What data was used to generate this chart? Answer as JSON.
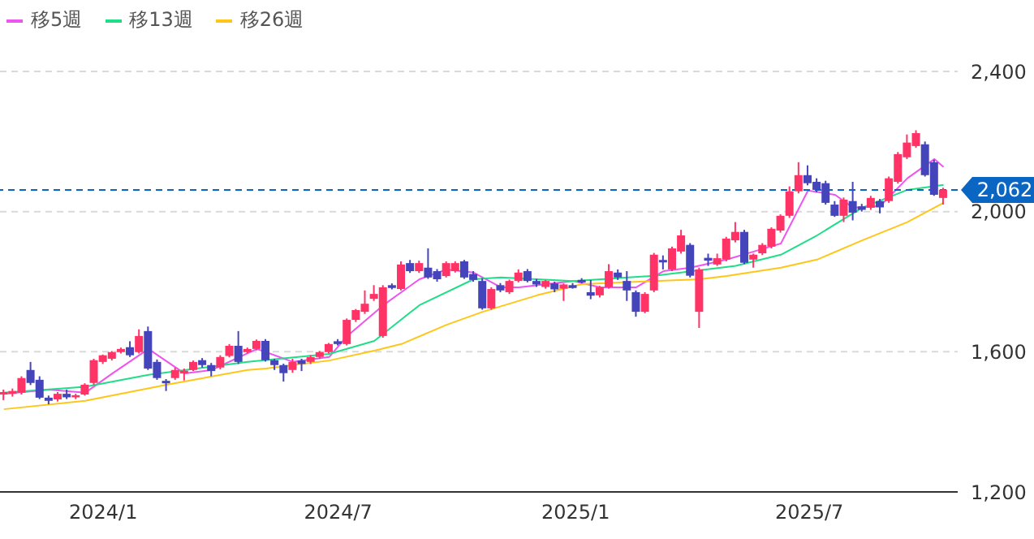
{
  "chart_data": {
    "type": "candlestick",
    "x": [
      "2023-10-16",
      "2023-10-23",
      "2023-10-30",
      "2023-11-06",
      "2023-11-13",
      "2023-11-20",
      "2023-11-27",
      "2023-12-04",
      "2023-12-11",
      "2023-12-18",
      "2023-12-25",
      "2024-01-01",
      "2024-01-08",
      "2024-01-15",
      "2024-01-22",
      "2024-01-29",
      "2024-02-05",
      "2024-02-12",
      "2024-02-19",
      "2024-02-26",
      "2024-03-04",
      "2024-03-11",
      "2024-03-18",
      "2024-03-25",
      "2024-04-01",
      "2024-04-08",
      "2024-04-15",
      "2024-04-22",
      "2024-04-29",
      "2024-05-06",
      "2024-05-13",
      "2024-05-20",
      "2024-05-27",
      "2024-06-03",
      "2024-06-10",
      "2024-06-17",
      "2024-06-24",
      "2024-07-01",
      "2024-07-08",
      "2024-07-15",
      "2024-07-22",
      "2024-07-29",
      "2024-08-05",
      "2024-08-12",
      "2024-08-19",
      "2024-08-26",
      "2024-09-02",
      "2024-09-09",
      "2024-09-16",
      "2024-09-23",
      "2024-09-30",
      "2024-10-07",
      "2024-10-14",
      "2024-10-21",
      "2024-10-28",
      "2024-11-04",
      "2024-11-11",
      "2024-11-18",
      "2024-11-25",
      "2024-12-02",
      "2024-12-09",
      "2024-12-16",
      "2024-12-23",
      "2024-12-30",
      "2025-01-06",
      "2025-01-13",
      "2025-01-20",
      "2025-01-27",
      "2025-02-03",
      "2025-02-10",
      "2025-02-17",
      "2025-02-24",
      "2025-03-03",
      "2025-03-10",
      "2025-03-17",
      "2025-03-24",
      "2025-03-31",
      "2025-04-07",
      "2025-04-14",
      "2025-04-21",
      "2025-04-28",
      "2025-05-05",
      "2025-05-12",
      "2025-05-19",
      "2025-05-26",
      "2025-06-02",
      "2025-06-09",
      "2025-06-16",
      "2025-06-23",
      "2025-06-30",
      "2025-07-07",
      "2025-07-14",
      "2025-07-21",
      "2025-07-28",
      "2025-08-04",
      "2025-08-11",
      "2025-08-18",
      "2025-08-25",
      "2025-09-01",
      "2025-09-08",
      "2025-09-15",
      "2025-09-22",
      "2025-09-29",
      "2025-10-06",
      "2025-10-13"
    ],
    "ohlc": [
      [
        1478,
        1492,
        1462,
        1485
      ],
      [
        1480,
        1495,
        1472,
        1488
      ],
      [
        1483,
        1530,
        1478,
        1525
      ],
      [
        1548,
        1571,
        1505,
        1511
      ],
      [
        1520,
        1530,
        1465,
        1469
      ],
      [
        1469,
        1475,
        1450,
        1460
      ],
      [
        1464,
        1485,
        1458,
        1480
      ],
      [
        1480,
        1492,
        1465,
        1470
      ],
      [
        1470,
        1480,
        1465,
        1476
      ],
      [
        1478,
        1510,
        1475,
        1506
      ],
      [
        1511,
        1580,
        1505,
        1576
      ],
      [
        1571,
        1592,
        1565,
        1590
      ],
      [
        1580,
        1602,
        1575,
        1599
      ],
      [
        1599,
        1612,
        1595,
        1608
      ],
      [
        1613,
        1630,
        1585,
        1590
      ],
      [
        1599,
        1664,
        1595,
        1645
      ],
      [
        1659,
        1672,
        1548,
        1552
      ],
      [
        1571,
        1578,
        1520,
        1525
      ],
      [
        1517,
        1522,
        1488,
        1510
      ],
      [
        1525,
        1555,
        1520,
        1548
      ],
      [
        1538,
        1552,
        1518,
        1546
      ],
      [
        1548,
        1575,
        1545,
        1571
      ],
      [
        1576,
        1582,
        1555,
        1562
      ],
      [
        1562,
        1568,
        1530,
        1545
      ],
      [
        1555,
        1590,
        1550,
        1585
      ],
      [
        1588,
        1622,
        1584,
        1617
      ],
      [
        1617,
        1659,
        1565,
        1571
      ],
      [
        1599,
        1612,
        1595,
        1608
      ],
      [
        1608,
        1635,
        1604,
        1631
      ],
      [
        1631,
        1636,
        1572,
        1576
      ],
      [
        1576,
        1580,
        1548,
        1562
      ],
      [
        1562,
        1566,
        1515,
        1539
      ],
      [
        1548,
        1580,
        1540,
        1571
      ],
      [
        1575,
        1580,
        1545,
        1565
      ],
      [
        1571,
        1590,
        1565,
        1585
      ],
      [
        1585,
        1602,
        1580,
        1599
      ],
      [
        1599,
        1625,
        1595,
        1622
      ],
      [
        1630,
        1636,
        1618,
        1622
      ],
      [
        1622,
        1695,
        1618,
        1691
      ],
      [
        1691,
        1722,
        1685,
        1719
      ],
      [
        1714,
        1775,
        1708,
        1737
      ],
      [
        1751,
        1790,
        1745,
        1765
      ],
      [
        1645,
        1790,
        1640,
        1784
      ],
      [
        1790,
        1795,
        1778,
        1782
      ],
      [
        1779,
        1858,
        1775,
        1849
      ],
      [
        1853,
        1862,
        1825,
        1830
      ],
      [
        1830,
        1860,
        1825,
        1853
      ],
      [
        1840,
        1895,
        1808,
        1812
      ],
      [
        1830,
        1836,
        1800,
        1807
      ],
      [
        1816,
        1858,
        1812,
        1853
      ],
      [
        1830,
        1858,
        1826,
        1853
      ],
      [
        1858,
        1862,
        1808,
        1812
      ],
      [
        1822,
        1830,
        1800,
        1805
      ],
      [
        1802,
        1810,
        1720,
        1724
      ],
      [
        1724,
        1784,
        1720,
        1779
      ],
      [
        1790,
        1796,
        1770,
        1775
      ],
      [
        1770,
        1806,
        1765,
        1802
      ],
      [
        1802,
        1835,
        1798,
        1826
      ],
      [
        1830,
        1836,
        1798,
        1802
      ],
      [
        1802,
        1808,
        1785,
        1792
      ],
      [
        1785,
        1805,
        1780,
        1802
      ],
      [
        1795,
        1800,
        1770,
        1778
      ],
      [
        1780,
        1795,
        1745,
        1792
      ],
      [
        1790,
        1796,
        1780,
        1782
      ],
      [
        1805,
        1810,
        1795,
        1798
      ],
      [
        1770,
        1805,
        1750,
        1760
      ],
      [
        1761,
        1788,
        1755,
        1784
      ],
      [
        1784,
        1850,
        1780,
        1830
      ],
      [
        1826,
        1835,
        1805,
        1812
      ],
      [
        1802,
        1830,
        1745,
        1775
      ],
      [
        1770,
        1775,
        1700,
        1714
      ],
      [
        1714,
        1770,
        1710,
        1765
      ],
      [
        1775,
        1882,
        1770,
        1877
      ],
      [
        1862,
        1875,
        1835,
        1855
      ],
      [
        1835,
        1900,
        1830,
        1895
      ],
      [
        1886,
        1948,
        1880,
        1932
      ],
      [
        1905,
        1910,
        1812,
        1817
      ],
      [
        1714,
        1840,
        1668,
        1835
      ],
      [
        1868,
        1880,
        1845,
        1860
      ],
      [
        1849,
        1880,
        1845,
        1867
      ],
      [
        1863,
        1928,
        1858,
        1923
      ],
      [
        1918,
        1970,
        1912,
        1942
      ],
      [
        1942,
        1948,
        1850,
        1854
      ],
      [
        1863,
        1880,
        1840,
        1877
      ],
      [
        1881,
        1910,
        1876,
        1905
      ],
      [
        1900,
        1955,
        1895,
        1951
      ],
      [
        1946,
        1992,
        1940,
        1988
      ],
      [
        1988,
        2072,
        1982,
        2058
      ],
      [
        2058,
        2141,
        2052,
        2104
      ],
      [
        2104,
        2132,
        2075,
        2081
      ],
      [
        2085,
        2095,
        2055,
        2062
      ],
      [
        2081,
        2088,
        2020,
        2025
      ],
      [
        2020,
        2030,
        1985,
        1988
      ],
      [
        1988,
        2040,
        1970,
        2034
      ],
      [
        2030,
        2085,
        1975,
        1997
      ],
      [
        2015,
        2022,
        2000,
        2005
      ],
      [
        2011,
        2045,
        2005,
        2039
      ],
      [
        2030,
        2036,
        1995,
        2012
      ],
      [
        2030,
        2100,
        2025,
        2095
      ],
      [
        2085,
        2170,
        2080,
        2164
      ],
      [
        2155,
        2220,
        2150,
        2197
      ],
      [
        2187,
        2232,
        2182,
        2224
      ],
      [
        2192,
        2200,
        2100,
        2104
      ],
      [
        2141,
        2148,
        2045,
        2048
      ],
      [
        2039,
        2068,
        2020,
        2062
      ]
    ],
    "colors": [
      "#ff3366",
      "#ff3366",
      "#ff3366",
      "#4444bb",
      "#4444bb",
      "#4444bb",
      "#ff3366",
      "#4444bb",
      "#ff3366",
      "#ff3366",
      "#ff3366",
      "#ff3366",
      "#ff3366",
      "#ff3366",
      "#4444bb",
      "#ff3366",
      "#4444bb",
      "#4444bb",
      "#4444bb",
      "#ff3366",
      "#ff3366",
      "#ff3366",
      "#4444bb",
      "#4444bb",
      "#ff3366",
      "#ff3366",
      "#4444bb",
      "#ff3366",
      "#ff3366",
      "#4444bb",
      "#4444bb",
      "#4444bb",
      "#ff3366",
      "#4444bb",
      "#ff3366",
      "#ff3366",
      "#ff3366",
      "#4444bb",
      "#ff3366",
      "#ff3366",
      "#ff3366",
      "#ff3366",
      "#ff3366",
      "#4444bb",
      "#ff3366",
      "#4444bb",
      "#ff3366",
      "#4444bb",
      "#4444bb",
      "#ff3366",
      "#ff3366",
      "#4444bb",
      "#4444bb",
      "#4444bb",
      "#ff3366",
      "#4444bb",
      "#ff3366",
      "#ff3366",
      "#4444bb",
      "#4444bb",
      "#ff3366",
      "#4444bb",
      "#ff3366",
      "#4444bb",
      "#4444bb",
      "#4444bb",
      "#ff3366",
      "#ff3366",
      "#4444bb",
      "#4444bb",
      "#4444bb",
      "#ff3366",
      "#ff3366",
      "#4444bb",
      "#ff3366",
      "#ff3366",
      "#4444bb",
      "#ff3366",
      "#4444bb",
      "#ff3366",
      "#ff3366",
      "#ff3366",
      "#4444bb",
      "#ff3366",
      "#ff3366",
      "#ff3366",
      "#ff3366",
      "#ff3366",
      "#ff3366",
      "#4444bb",
      "#4444bb",
      "#4444bb",
      "#4444bb",
      "#ff3366",
      "#4444bb",
      "#4444bb",
      "#ff3366",
      "#4444bb",
      "#ff3366",
      "#ff3366",
      "#ff3366",
      "#ff3366",
      "#4444bb",
      "#4444bb",
      "#ff3366"
    ],
    "series": [
      {
        "name": "移5週",
        "type": "line",
        "color": "#ee55ee",
        "x": [
          "2023-10-16",
          "2023-11-20",
          "2023-12-18",
          "2024-01-08",
          "2024-02-05",
          "2024-03-04",
          "2024-03-25",
          "2024-04-29",
          "2024-05-06",
          "2024-05-27",
          "2024-06-24",
          "2024-07-08",
          "2024-08-05",
          "2024-09-02",
          "2024-09-23",
          "2024-10-14",
          "2024-11-04",
          "2024-11-18",
          "2024-12-30",
          "2025-01-20",
          "2025-02-17",
          "2025-03-10",
          "2025-03-31",
          "2025-04-28",
          "2025-05-19",
          "2025-06-09",
          "2025-06-30",
          "2025-07-21",
          "2025-08-04",
          "2025-08-25",
          "2025-09-15",
          "2025-10-06",
          "2025-10-13"
        ],
        "values": [
          1480,
          1492,
          1483,
          1538,
          1608,
          1538,
          1548,
          1608,
          1599,
          1571,
          1585,
          1645,
          1733,
          1807,
          1835,
          1826,
          1784,
          1784,
          1802,
          1784,
          1784,
          1830,
          1840,
          1863,
          1886,
          1909,
          2060,
          2048,
          2011,
          2016,
          2095,
          2150,
          2127
        ]
      },
      {
        "name": "移13週",
        "type": "line",
        "color": "#22dd88",
        "x": [
          "2023-10-16",
          "2023-12-18",
          "2024-02-05",
          "2024-04-22",
          "2024-06-24",
          "2024-07-29",
          "2024-09-02",
          "2024-10-14",
          "2024-11-04",
          "2024-12-30",
          "2025-03-03",
          "2025-05-05",
          "2025-06-09",
          "2025-07-07",
          "2025-08-11",
          "2025-09-15",
          "2025-10-13"
        ],
        "values": [
          1483,
          1500,
          1534,
          1571,
          1594,
          1631,
          1733,
          1807,
          1812,
          1802,
          1817,
          1845,
          1877,
          1932,
          2011,
          2062,
          2076
        ]
      },
      {
        "name": "移26週",
        "type": "line",
        "color": "#ffc61a",
        "x": [
          "2023-10-16",
          "2023-12-18",
          "2024-02-19",
          "2024-04-22",
          "2024-05-06",
          "2024-06-24",
          "2024-07-29",
          "2024-08-19",
          "2024-09-23",
          "2024-10-21",
          "2024-12-02",
          "2025-01-06",
          "2025-03-03",
          "2025-04-07",
          "2025-04-28",
          "2025-06-09",
          "2025-07-07",
          "2025-08-11",
          "2025-09-15",
          "2025-10-13"
        ],
        "values": [
          1436,
          1460,
          1506,
          1548,
          1552,
          1575,
          1603,
          1622,
          1677,
          1714,
          1761,
          1793,
          1802,
          1807,
          1816,
          1840,
          1863,
          1918,
          1970,
          2025
        ]
      }
    ],
    "xlim": [
      "2023-10-13",
      "2025-10-24"
    ],
    "xticks": [
      {
        "value": "2024-01-01",
        "label": "2024/1"
      },
      {
        "value": "2024-07-01",
        "label": "2024/7"
      },
      {
        "value": "2025-01-01",
        "label": "2025/1"
      },
      {
        "value": "2025-07-01",
        "label": "2025/7"
      }
    ],
    "ylim": [
      1200,
      2400
    ],
    "yticks": [
      {
        "value": 1200,
        "label": "1,200"
      },
      {
        "value": 1600,
        "label": "1,600"
      },
      {
        "value": 2000,
        "label": "2,000"
      },
      {
        "value": 2400,
        "label": "2,400"
      }
    ],
    "grid": "y",
    "legend": "top left",
    "ref_lines": [
      {
        "axis": "y",
        "value": 2062,
        "label": "2,062",
        "color": "#0a66c2",
        "line_style": "dashed"
      }
    ]
  }
}
